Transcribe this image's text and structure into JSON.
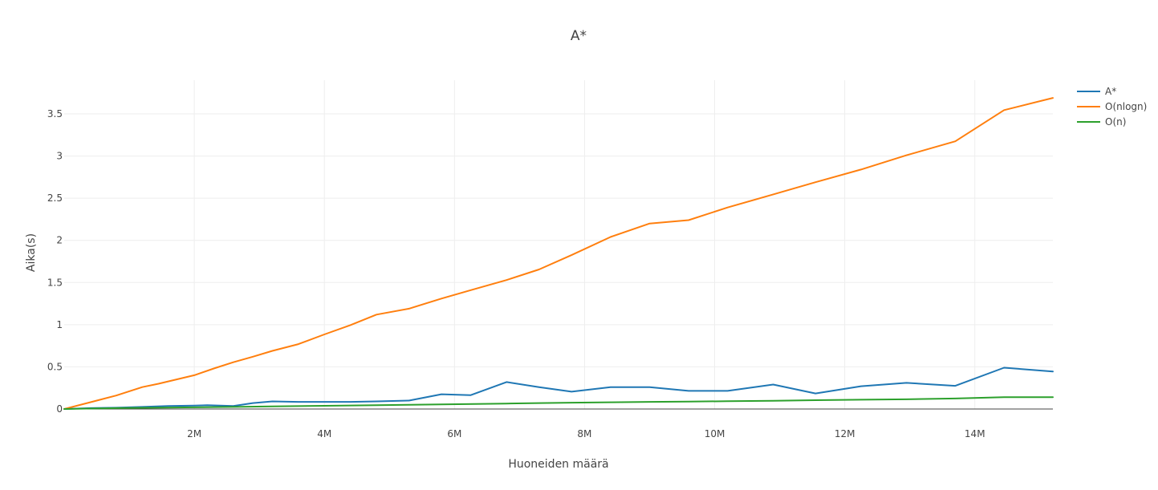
{
  "chart_data": {
    "type": "line",
    "title": "A*",
    "xlabel": "Huoneiden määrä",
    "ylabel": "Aika(s)",
    "xlim": [
      0,
      15200000
    ],
    "ylim": [
      0,
      3.9
    ],
    "x_ticks": [
      2000000,
      4000000,
      6000000,
      8000000,
      10000000,
      12000000,
      14000000
    ],
    "x_tick_labels": [
      "2M",
      "4M",
      "6M",
      "8M",
      "10M",
      "12M",
      "14M"
    ],
    "y_ticks": [
      0,
      0.5,
      1,
      1.5,
      2,
      2.5,
      3,
      3.5
    ],
    "y_tick_labels": [
      "0",
      "0.5",
      "1",
      "1.5",
      "2",
      "2.5",
      "3",
      "3.5"
    ],
    "grid": true,
    "legend_position": "top-right",
    "series": [
      {
        "name": "A*",
        "color": "#1f77b4",
        "x": [
          0,
          400000,
          800000,
          1200000,
          1600000,
          2000000,
          2200000,
          2600000,
          2900000,
          3200000,
          3600000,
          4000000,
          4400000,
          4800000,
          5300000,
          5800000,
          6250000,
          6800000,
          7300000,
          7800000,
          8400000,
          9000000,
          9600000,
          10200000,
          10900000,
          11550000,
          12250000,
          12950000,
          13700000,
          14450000,
          15200000
        ],
        "y": [
          0,
          0.01,
          0.015,
          0.025,
          0.035,
          0.04,
          0.045,
          0.035,
          0.07,
          0.09,
          0.085,
          0.085,
          0.085,
          0.09,
          0.1,
          0.175,
          0.165,
          0.32,
          0.26,
          0.205,
          0.26,
          0.26,
          0.215,
          0.215,
          0.29,
          0.185,
          0.27,
          0.31,
          0.275,
          0.49,
          0.445
        ]
      },
      {
        "name": "O(nlogn)",
        "color": "#ff7f0e",
        "x": [
          0,
          400000,
          800000,
          1200000,
          1450000,
          2000000,
          2300000,
          2600000,
          2900000,
          3200000,
          3600000,
          4000000,
          4400000,
          4800000,
          5300000,
          5800000,
          6250000,
          6800000,
          7300000,
          7800000,
          8400000,
          9000000,
          9600000,
          10200000,
          10900000,
          11550000,
          12250000,
          12950000,
          13700000,
          14450000,
          15200000
        ],
        "y": [
          0,
          0.08,
          0.16,
          0.26,
          0.3,
          0.4,
          0.48,
          0.555,
          0.62,
          0.69,
          0.77,
          0.885,
          0.995,
          1.12,
          1.19,
          1.31,
          1.41,
          1.53,
          1.655,
          1.825,
          2.04,
          2.2,
          2.24,
          2.39,
          2.545,
          2.69,
          2.84,
          3.01,
          3.175,
          3.545,
          3.69
        ]
      },
      {
        "name": "O(n)",
        "color": "#2ca02c",
        "x": [
          0,
          800000,
          2000000,
          2600000,
          3200000,
          4000000,
          4800000,
          5300000,
          5800000,
          6800000,
          7300000,
          7800000,
          8400000,
          9000000,
          9600000,
          10200000,
          10900000,
          11550000,
          12250000,
          12950000,
          13700000,
          14450000,
          15200000
        ],
        "y": [
          0,
          0.01,
          0.02,
          0.025,
          0.03,
          0.038,
          0.045,
          0.05,
          0.055,
          0.065,
          0.07,
          0.075,
          0.08,
          0.085,
          0.088,
          0.092,
          0.098,
          0.105,
          0.11,
          0.115,
          0.125,
          0.14,
          0.14
        ]
      }
    ]
  }
}
